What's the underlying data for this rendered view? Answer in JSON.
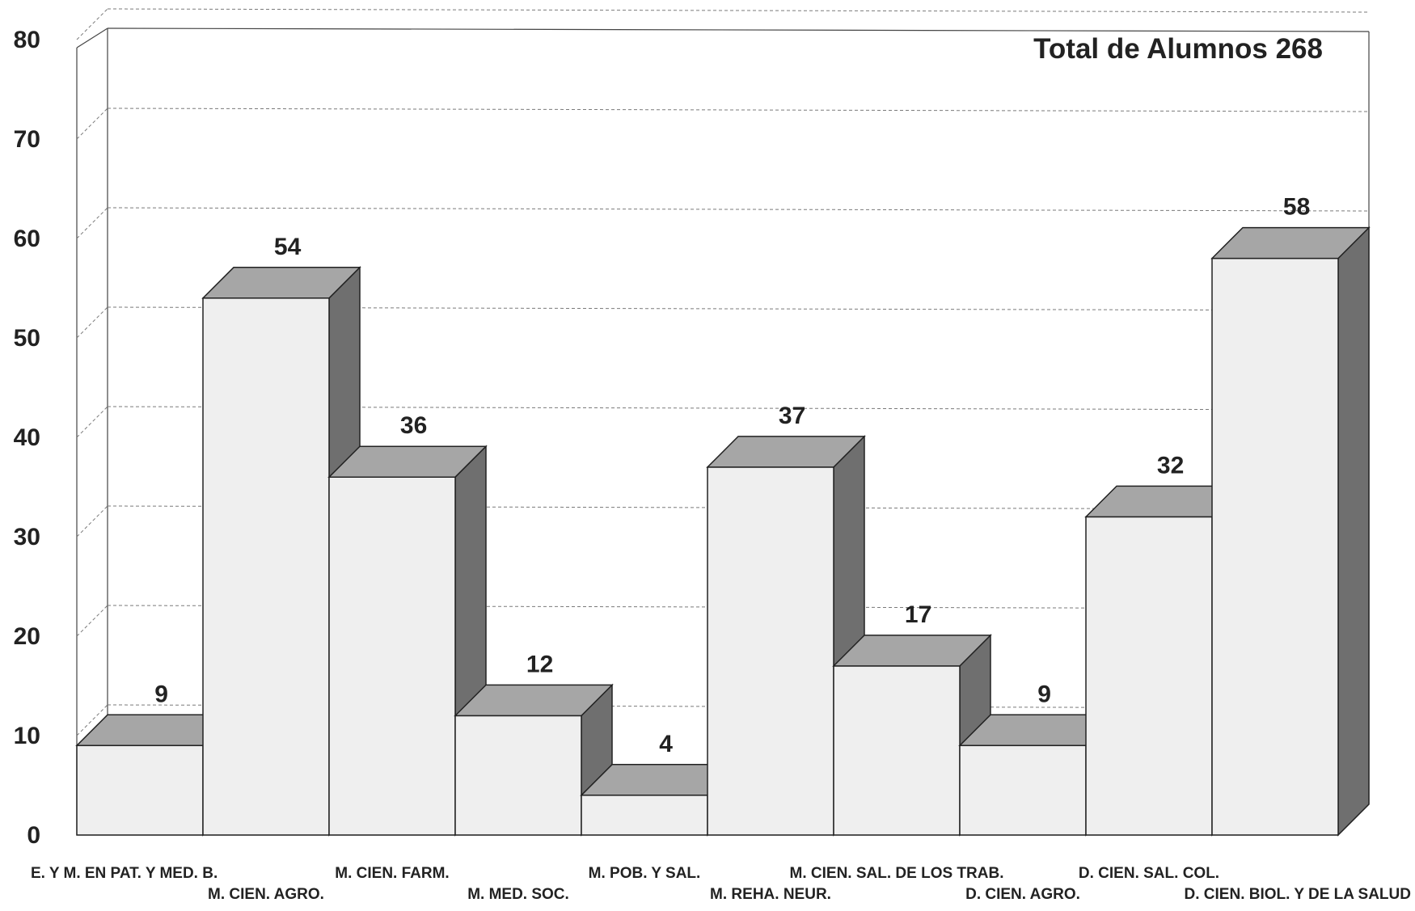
{
  "chart_data": {
    "type": "bar",
    "title": "Total de Alumnos 268",
    "categories": [
      "E. Y M. EN PAT. Y MED. B.",
      "M. CIEN. AGRO.",
      "M. CIEN. FARM.",
      "M. MED. SOC.",
      "M. POB. Y SAL.",
      "M. REHA. NEUR.",
      "M. CIEN. SAL. DE LOS TRAB.",
      "D. CIEN. AGRO.",
      "D. CIEN. SAL. COL.",
      "D. CIEN. BIOL. Y DE LA SALUD"
    ],
    "values": [
      9,
      54,
      36,
      12,
      4,
      37,
      17,
      9,
      32,
      58
    ],
    "data_labels": [
      "9",
      "54",
      "36",
      "12",
      "4",
      "37",
      "17",
      "9",
      "32",
      "58"
    ],
    "y_ticks": [
      "0",
      "10",
      "20",
      "30",
      "40",
      "50",
      "60",
      "70",
      "80"
    ],
    "ylim": [
      0,
      80
    ],
    "xlabel": "",
    "ylabel": "",
    "grid": true,
    "style": "3d-bar",
    "colors": {
      "bar_front": "#efefef",
      "bar_top": "#a6a6a6",
      "bar_side": "#6f6f6f",
      "grid": "#7a7a7a",
      "frame": "#444444"
    }
  }
}
